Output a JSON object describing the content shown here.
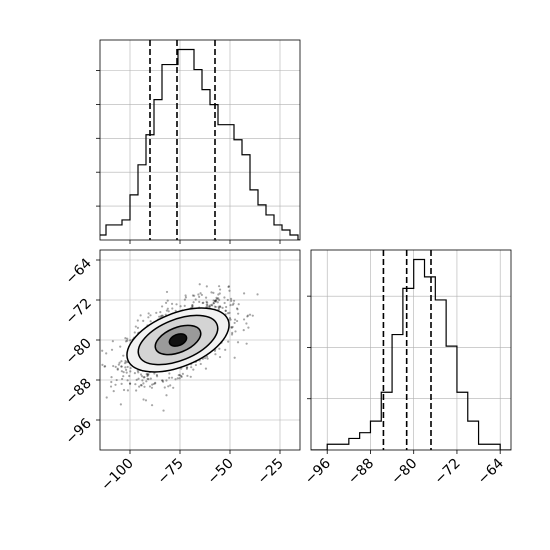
{
  "chart_data": [
    {
      "type": "bar",
      "panel": "histogram of x (top-left)",
      "bins_x": [
        -128,
        -124,
        -120,
        -116,
        -112,
        -108,
        -104,
        -100,
        -96,
        -92,
        -88,
        -84,
        -80,
        -76,
        -72,
        -68,
        -64,
        -60,
        -56,
        -52,
        -48,
        -44,
        -40,
        -36,
        -32,
        -28,
        -24,
        -20,
        -16
      ],
      "counts": [
        0,
        0,
        1,
        1,
        3,
        3,
        4,
        9,
        15,
        21,
        28,
        35,
        35,
        38,
        38,
        34,
        30,
        27,
        23,
        23,
        20,
        17,
        10,
        7,
        5,
        3,
        2,
        1,
        0
      ],
      "quantile_lines_x": [
        -90,
        -76.5,
        -57.5
      ],
      "xlim": [
        -115,
        -15
      ],
      "grid": true,
      "line_color": "#000000"
    },
    {
      "type": "heatmap",
      "panel": "2D density with contours (bottom-left)",
      "xlim": [
        -115,
        -15
      ],
      "ylim": [
        -102,
        -62
      ],
      "x_ticks": [
        -100,
        -75,
        -50,
        -25
      ],
      "x_tick_labels": [
        "−100",
        "−75",
        "−50",
        "−25"
      ],
      "y_ticks": [
        -64,
        -72,
        -80,
        -88,
        -96
      ],
      "y_tick_labels": [
        "−64",
        "−72",
        "−80",
        "−88",
        "−96"
      ],
      "center": [
        -76,
        -80
      ],
      "spread": [
        12,
        3.6
      ],
      "contours": [
        {
          "level": 1,
          "rx": 27,
          "ry": 8.6,
          "fill": "#f2f2f2"
        },
        {
          "level": 2,
          "rx": 21,
          "ry": 6.6,
          "fill": "#d4d4d4"
        },
        {
          "level": 3,
          "rx": 12,
          "ry": 4.0,
          "fill": "#9a9a9a"
        },
        {
          "level": 4,
          "rx": 4.5,
          "ry": 1.8,
          "fill": "#111111"
        }
      ],
      "grid": true
    },
    {
      "type": "bar",
      "panel": "histogram of y (bottom-right)",
      "bins_x": [
        -100,
        -98,
        -96,
        -94,
        -92,
        -90,
        -88,
        -86,
        -84,
        -82,
        -80,
        -78,
        -76,
        -74,
        -72,
        -70,
        -68,
        -66,
        -64,
        -62
      ],
      "counts": [
        0,
        0,
        1,
        1,
        2,
        3,
        5,
        10,
        20,
        28,
        33,
        30,
        26,
        18,
        10,
        5,
        1,
        1,
        0,
        0
      ],
      "quantile_lines_x": [
        -85.6,
        -81.3,
        -76.8
      ],
      "xlim": [
        -99,
        -62
      ],
      "x_ticks": [
        -96,
        -88,
        -80,
        -72,
        -64
      ],
      "x_tick_labels": [
        "−96",
        "−88",
        "−80",
        "−72",
        "−64"
      ],
      "grid": true,
      "line_color": "#000000"
    }
  ]
}
